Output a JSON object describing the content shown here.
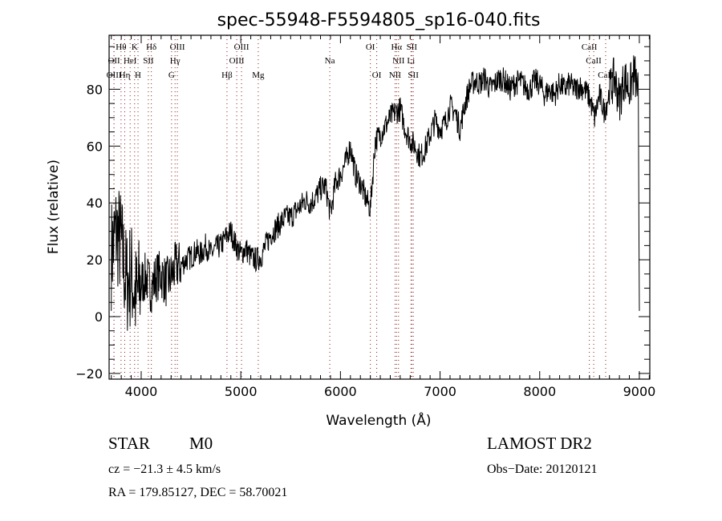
{
  "chart_data": {
    "type": "line",
    "title": "spec-55948-F5594805_sp16-040.fits",
    "xlabel": "Wavelength (Å)",
    "ylabel": "Flux (relative)",
    "xlim": [
      3678,
      9105
    ],
    "ylim": [
      -22,
      99
    ],
    "xticks": [
      4000,
      5000,
      6000,
      7000,
      8000,
      9000
    ],
    "yticks": [
      -20,
      0,
      20,
      40,
      60,
      80
    ],
    "grid": false,
    "line_color": "#000000",
    "marker_line_color": "#8b1a1a",
    "series": [
      {
        "name": "spectrum",
        "x": [
          3700,
          3750,
          3800,
          3850,
          3900,
          3950,
          4000,
          4050,
          4100,
          4150,
          4200,
          4250,
          4300,
          4350,
          4400,
          4450,
          4500,
          4550,
          4600,
          4650,
          4700,
          4750,
          4800,
          4850,
          4900,
          4950,
          5000,
          5050,
          5100,
          5150,
          5200,
          5250,
          5300,
          5350,
          5400,
          5450,
          5500,
          5550,
          5600,
          5650,
          5700,
          5750,
          5800,
          5850,
          5900,
          5950,
          6000,
          6050,
          6100,
          6150,
          6200,
          6250,
          6300,
          6350,
          6400,
          6450,
          6500,
          6550,
          6600,
          6650,
          6700,
          6750,
          6800,
          6850,
          6900,
          6950,
          7000,
          7050,
          7100,
          7150,
          7200,
          7250,
          7300,
          7350,
          7400,
          7450,
          7500,
          7550,
          7600,
          7650,
          7700,
          7750,
          7800,
          7850,
          7900,
          7950,
          8000,
          8050,
          8100,
          8150,
          8200,
          8250,
          8300,
          8350,
          8400,
          8450,
          8500,
          8550,
          8600,
          8650,
          8700,
          8750,
          8800,
          8850,
          8900,
          8950,
          8990,
          9000
        ],
        "y": [
          22,
          30,
          25,
          12,
          15,
          6,
          12,
          14,
          10,
          14,
          15,
          12,
          14,
          18,
          18,
          20,
          21,
          23,
          22,
          25,
          22,
          24,
          25,
          28,
          30,
          25,
          22,
          24,
          21,
          20,
          21,
          25,
          29,
          31,
          33,
          35,
          35,
          37,
          39,
          41,
          40,
          42,
          45,
          46,
          36,
          47,
          50,
          54,
          60,
          50,
          47,
          42,
          38,
          62,
          64,
          67,
          70,
          72,
          73,
          66,
          62,
          60,
          56,
          59,
          64,
          69,
          66,
          68,
          74,
          72,
          66,
          75,
          81,
          83,
          82,
          84,
          80,
          82,
          84,
          83,
          80,
          82,
          83,
          81,
          80,
          83,
          82,
          78,
          80,
          78,
          82,
          80,
          82,
          80,
          81,
          80,
          77,
          70,
          78,
          72,
          79,
          84,
          76,
          84,
          80,
          86,
          78,
          2
        ]
      }
    ],
    "line_markers": [
      {
        "label": "Hθ",
        "wavelength": 3798,
        "row": 1
      },
      {
        "label": "K",
        "wavelength": 3934,
        "row": 1
      },
      {
        "label": "Hδ",
        "wavelength": 4102,
        "row": 1
      },
      {
        "label": "OIII",
        "wavelength": 4363,
        "row": 1
      },
      {
        "label": "OIII",
        "wavelength": 5007,
        "row": 1
      },
      {
        "label": "OI",
        "wavelength": 6300,
        "row": 1
      },
      {
        "label": "Hα",
        "wavelength": 6563,
        "row": 1
      },
      {
        "label": "SII",
        "wavelength": 6716,
        "row": 1
      },
      {
        "label": "CaII",
        "wavelength": 8498,
        "row": 1
      },
      {
        "label": "OII",
        "wavelength": 3727,
        "row": 2
      },
      {
        "label": "HeI",
        "wavelength": 3889,
        "row": 2
      },
      {
        "label": "SII",
        "wavelength": 4072,
        "row": 2
      },
      {
        "label": "Hγ",
        "wavelength": 4340,
        "row": 2
      },
      {
        "label": "OIII",
        "wavelength": 4959,
        "row": 2
      },
      {
        "label": "Na",
        "wavelength": 5893,
        "row": 2
      },
      {
        "label": "NII",
        "wavelength": 6583,
        "row": 2
      },
      {
        "label": "Li",
        "wavelength": 6708,
        "row": 2
      },
      {
        "label": "CaII",
        "wavelength": 8542,
        "row": 2
      },
      {
        "label": "OIII",
        "wavelength": 3727,
        "row": 3
      },
      {
        "label": "Hη",
        "wavelength": 3835,
        "row": 3
      },
      {
        "label": "H",
        "wavelength": 3968,
        "row": 3
      },
      {
        "label": "G",
        "wavelength": 4305,
        "row": 3
      },
      {
        "label": "Hβ",
        "wavelength": 4861,
        "row": 3
      },
      {
        "label": "Mg",
        "wavelength": 5175,
        "row": 3
      },
      {
        "label": "OI",
        "wavelength": 6364,
        "row": 3
      },
      {
        "label": "NII",
        "wavelength": 6548,
        "row": 3
      },
      {
        "label": "SII",
        "wavelength": 6731,
        "row": 3
      },
      {
        "label": "CaII",
        "wavelength": 8662,
        "row": 3
      }
    ]
  },
  "info": {
    "object_class": "STAR",
    "subclass": "M0",
    "redshift": "cz = −21.3 ± 4.5 km/s",
    "coords": "RA = 179.85127, DEC =  58.70021",
    "survey": "LAMOST DR2",
    "obs_date": "Obs−Date: 20120121"
  }
}
